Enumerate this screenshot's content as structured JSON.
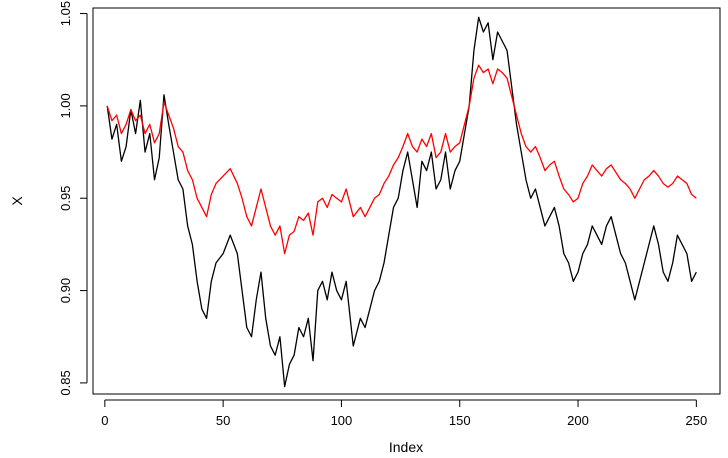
{
  "chart_data": {
    "type": "line",
    "title": "",
    "xlabel": "Index",
    "ylabel": "X",
    "xlim": [
      -5,
      260
    ],
    "ylim": [
      0.844,
      1.053
    ],
    "x_ticks": [
      0,
      50,
      100,
      150,
      200,
      250
    ],
    "x_tick_labels": [
      "0",
      "50",
      "100",
      "150",
      "200",
      "250"
    ],
    "y_ticks": [
      0.85,
      0.9,
      0.95,
      1.0,
      1.05
    ],
    "y_tick_labels": [
      "0.85",
      "0.90",
      "0.95",
      "1.00",
      "1.05"
    ],
    "grid": false,
    "legend": "none",
    "series": [
      {
        "color": "#000000",
        "x": [
          1,
          3,
          5,
          7,
          9,
          11,
          13,
          15,
          17,
          19,
          21,
          23,
          25,
          27,
          29,
          31,
          33,
          35,
          37,
          39,
          41,
          43,
          45,
          47,
          50,
          53,
          56,
          58,
          60,
          62,
          64,
          66,
          68,
          70,
          72,
          74,
          76,
          78,
          80,
          82,
          84,
          86,
          88,
          90,
          92,
          94,
          96,
          98,
          100,
          102,
          105,
          108,
          110,
          112,
          114,
          116,
          118,
          120,
          122,
          124,
          126,
          128,
          130,
          132,
          134,
          136,
          138,
          140,
          142,
          144,
          146,
          148,
          150,
          152,
          154,
          156,
          158,
          160,
          162,
          164,
          166,
          168,
          170,
          172,
          174,
          176,
          178,
          180,
          182,
          184,
          186,
          188,
          190,
          192,
          194,
          196,
          198,
          200,
          202,
          204,
          206,
          208,
          210,
          212,
          214,
          216,
          218,
          220,
          222,
          224,
          226,
          228,
          230,
          232,
          234,
          236,
          238,
          240,
          242,
          244,
          246,
          248,
          250
        ],
        "values": [
          1.0,
          0.982,
          0.99,
          0.97,
          0.978,
          0.998,
          0.985,
          1.003,
          0.975,
          0.985,
          0.96,
          0.972,
          1.006,
          0.99,
          0.975,
          0.96,
          0.955,
          0.935,
          0.925,
          0.905,
          0.89,
          0.885,
          0.905,
          0.915,
          0.92,
          0.93,
          0.92,
          0.9,
          0.88,
          0.875,
          0.895,
          0.91,
          0.885,
          0.87,
          0.865,
          0.875,
          0.848,
          0.86,
          0.865,
          0.88,
          0.875,
          0.885,
          0.862,
          0.9,
          0.905,
          0.895,
          0.91,
          0.9,
          0.895,
          0.905,
          0.87,
          0.885,
          0.88,
          0.89,
          0.9,
          0.905,
          0.915,
          0.93,
          0.945,
          0.95,
          0.965,
          0.975,
          0.96,
          0.945,
          0.97,
          0.965,
          0.975,
          0.955,
          0.96,
          0.975,
          0.955,
          0.965,
          0.97,
          0.985,
          1.0,
          1.03,
          1.048,
          1.04,
          1.045,
          1.025,
          1.04,
          1.035,
          1.03,
          1.01,
          0.99,
          0.975,
          0.96,
          0.95,
          0.955,
          0.945,
          0.935,
          0.94,
          0.945,
          0.935,
          0.92,
          0.915,
          0.905,
          0.91,
          0.92,
          0.925,
          0.935,
          0.93,
          0.925,
          0.935,
          0.94,
          0.93,
          0.92,
          0.915,
          0.905,
          0.895,
          0.905,
          0.915,
          0.925,
          0.935,
          0.925,
          0.91,
          0.905,
          0.915,
          0.93,
          0.925,
          0.92,
          0.905,
          0.91
        ]
      },
      {
        "color": "#ff0000",
        "x": [
          1,
          3,
          5,
          7,
          9,
          11,
          13,
          15,
          17,
          19,
          21,
          23,
          25,
          27,
          29,
          31,
          33,
          35,
          37,
          39,
          41,
          43,
          45,
          47,
          50,
          53,
          56,
          58,
          60,
          62,
          64,
          66,
          68,
          70,
          72,
          74,
          76,
          78,
          80,
          82,
          84,
          86,
          88,
          90,
          92,
          94,
          96,
          98,
          100,
          102,
          105,
          108,
          110,
          112,
          114,
          116,
          118,
          120,
          122,
          124,
          126,
          128,
          130,
          132,
          134,
          136,
          138,
          140,
          142,
          144,
          146,
          148,
          150,
          152,
          154,
          156,
          158,
          160,
          162,
          164,
          166,
          168,
          170,
          172,
          174,
          176,
          178,
          180,
          182,
          184,
          186,
          188,
          190,
          192,
          194,
          196,
          198,
          200,
          202,
          204,
          206,
          208,
          210,
          212,
          214,
          216,
          218,
          220,
          222,
          224,
          226,
          228,
          230,
          232,
          234,
          236,
          238,
          240,
          242,
          244,
          246,
          248,
          250
        ],
        "values": [
          1.0,
          0.992,
          0.995,
          0.985,
          0.99,
          0.998,
          0.992,
          0.995,
          0.985,
          0.99,
          0.98,
          0.985,
          1.002,
          0.995,
          0.988,
          0.978,
          0.975,
          0.965,
          0.96,
          0.95,
          0.945,
          0.94,
          0.952,
          0.958,
          0.962,
          0.966,
          0.958,
          0.95,
          0.94,
          0.935,
          0.945,
          0.955,
          0.945,
          0.935,
          0.93,
          0.935,
          0.92,
          0.93,
          0.932,
          0.94,
          0.938,
          0.942,
          0.93,
          0.948,
          0.95,
          0.945,
          0.952,
          0.95,
          0.948,
          0.955,
          0.94,
          0.945,
          0.94,
          0.945,
          0.95,
          0.952,
          0.958,
          0.962,
          0.968,
          0.972,
          0.978,
          0.985,
          0.978,
          0.975,
          0.982,
          0.978,
          0.985,
          0.972,
          0.975,
          0.985,
          0.975,
          0.978,
          0.98,
          0.99,
          1.0,
          1.015,
          1.022,
          1.018,
          1.02,
          1.012,
          1.02,
          1.018,
          1.015,
          1.005,
          0.995,
          0.985,
          0.978,
          0.975,
          0.978,
          0.972,
          0.965,
          0.968,
          0.97,
          0.962,
          0.955,
          0.952,
          0.948,
          0.95,
          0.958,
          0.962,
          0.968,
          0.965,
          0.962,
          0.966,
          0.968,
          0.964,
          0.96,
          0.958,
          0.955,
          0.95,
          0.955,
          0.96,
          0.962,
          0.965,
          0.962,
          0.958,
          0.956,
          0.958,
          0.962,
          0.96,
          0.958,
          0.952,
          0.95
        ]
      }
    ]
  }
}
